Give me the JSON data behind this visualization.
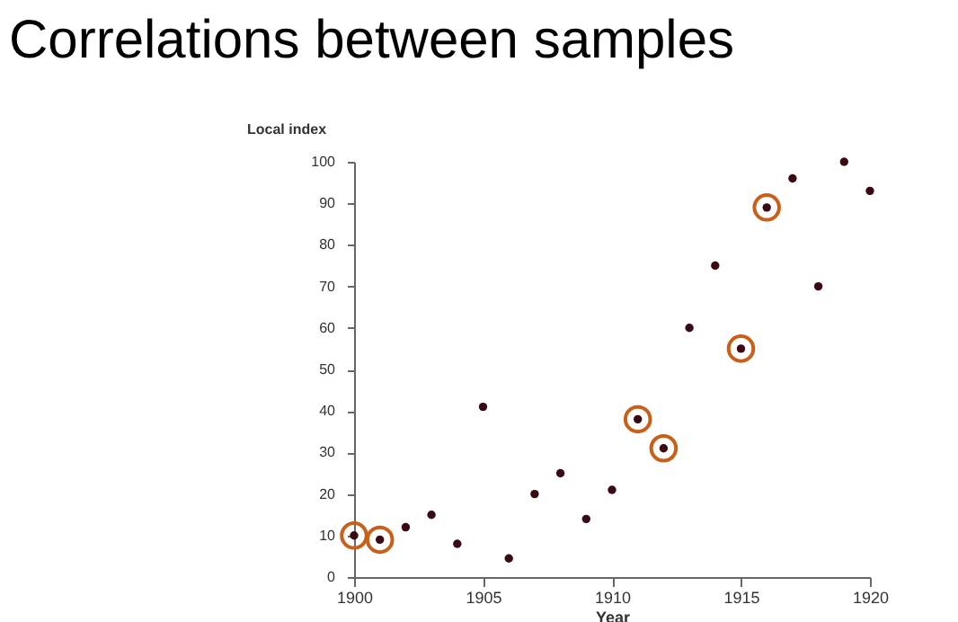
{
  "chart_data": {
    "type": "scatter",
    "title": "Correlations between samples",
    "xlabel": "Year",
    "ylabel": "Local index",
    "x": [
      1900,
      1901,
      1902,
      1903,
      1904,
      1905,
      1906,
      1907,
      1908,
      1909,
      1910,
      1911,
      1912,
      1913,
      1914,
      1915,
      1916,
      1917,
      1918,
      1919,
      1920
    ],
    "series": [
      {
        "color": "#3a0a14",
        "marker": "circle",
        "values": [
          10,
          9,
          12,
          15,
          8,
          41,
          4.5,
          20,
          25,
          14,
          21,
          38,
          31,
          60,
          75,
          55,
          89,
          96,
          70,
          100,
          93
        ]
      },
      {
        "color": "#c8601a",
        "marker": "circle",
        "values": [
          10,
          9,
          null,
          null,
          null,
          null,
          null,
          null,
          null,
          null,
          null,
          38,
          31,
          null,
          null,
          55,
          89,
          null,
          null,
          null,
          null
        ]
      }
    ],
    "xlim": [
      1900,
      1920
    ],
    "xticks": [
      1900,
      1905,
      1910,
      1915,
      1920
    ],
    "ylim": [
      0,
      100
    ],
    "yticks": [
      0,
      10,
      20,
      30,
      40,
      50,
      60,
      70,
      80,
      90,
      100
    ],
    "grid": false
  }
}
